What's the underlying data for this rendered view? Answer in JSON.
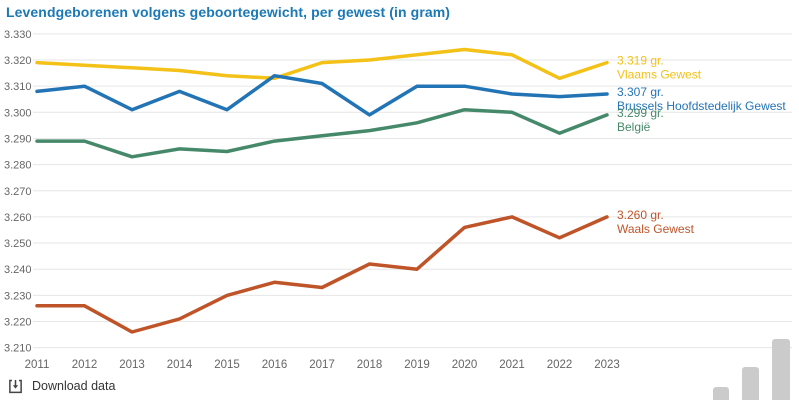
{
  "chart_data": {
    "type": "line",
    "title": "Levendgeborenen volgens geboortegewicht, per gewest (in gram)",
    "xlabel": "",
    "ylabel": "",
    "x": [
      2011,
      2012,
      2013,
      2014,
      2015,
      2016,
      2017,
      2018,
      2019,
      2020,
      2021,
      2022,
      2023
    ],
    "ylim": [
      3210,
      3330
    ],
    "ytick_step": 10,
    "grid": true,
    "legend_position": "right-end-of-line-labels",
    "series": [
      {
        "name": "Vlaams Gewest",
        "color": "#f3c118",
        "end_label": "3.319 gr.",
        "values": [
          3319,
          3318,
          3317,
          3316,
          3314,
          3313,
          3319,
          3320,
          3322,
          3324,
          3322,
          3313,
          3319
        ]
      },
      {
        "name": "Brussels Hoofdstedelijk Gewest",
        "color": "#2374b5",
        "end_label": "3.307 gr.",
        "values": [
          3308,
          3310,
          3301,
          3308,
          3301,
          3314,
          3311,
          3299,
          3310,
          3310,
          3307,
          3306,
          3307
        ]
      },
      {
        "name": "België",
        "color": "#46896a",
        "end_label": "3.299 gr.",
        "values": [
          3289,
          3289,
          3283,
          3286,
          3285,
          3289,
          3291,
          3293,
          3296,
          3301,
          3300,
          3292,
          3299
        ]
      },
      {
        "name": "Waals Gewest",
        "color": "#bf5429",
        "end_label": "3.260 gr.",
        "values": [
          3226,
          3226,
          3216,
          3221,
          3230,
          3235,
          3233,
          3242,
          3240,
          3256,
          3260,
          3252,
          3260
        ]
      }
    ]
  },
  "footer": {
    "download_label": "Download data"
  },
  "decorations": {
    "corner_bars_icon": "bar-chart-icon",
    "corner_bar_heights": [
      13,
      33,
      61
    ]
  },
  "colors": {
    "title": "#1b79b5",
    "axis_text": "#666666",
    "grid": "#e6e6e6",
    "download_text": "#333333",
    "corner_bars": "#cbcbcb"
  }
}
